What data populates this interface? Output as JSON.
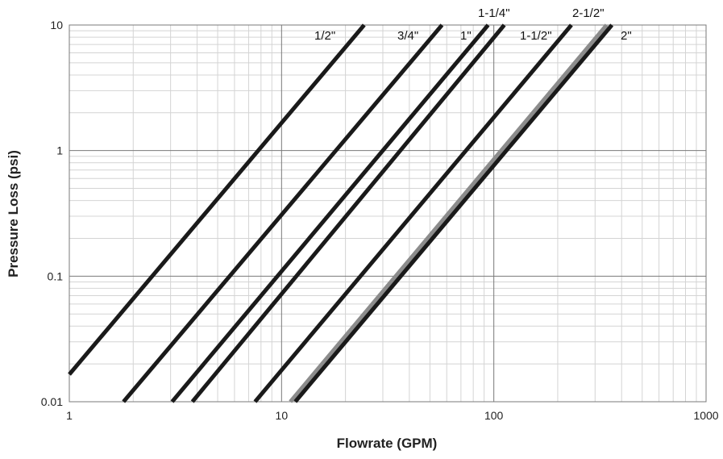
{
  "chart_data": {
    "type": "line",
    "xlabel": "Flowrate (GPM)",
    "ylabel": "Pressure Loss (psi)",
    "xscale": "log",
    "yscale": "log",
    "xlim": [
      1,
      1000
    ],
    "ylim": [
      0.01,
      10
    ],
    "x_ticks": [
      "1",
      "10",
      "100",
      "1000"
    ],
    "y_ticks": [
      "0.01",
      "0.1",
      "1",
      "10"
    ],
    "grid": true,
    "legend": "none (series labeled at top of lines)",
    "colors": {
      "line": "#1a1a1a",
      "gray_line": "#8c8c8c",
      "major_grid": "#7a7a7a",
      "minor_grid": "#d4d4d4"
    },
    "series": [
      {
        "name": "1/2\"",
        "color": "#1a1a1a",
        "x": [
          1,
          24.5
        ],
        "y": [
          0.0165,
          10
        ]
      },
      {
        "name": "3/4\"",
        "color": "#1a1a1a",
        "x": [
          1.8,
          57
        ],
        "y": [
          0.01,
          10
        ]
      },
      {
        "name": "1\"",
        "color": "#1a1a1a",
        "x": [
          3.05,
          94
        ],
        "y": [
          0.01,
          10
        ]
      },
      {
        "name": "1-1/4\"",
        "color": "#1a1a1a",
        "x": [
          3.8,
          112
        ],
        "y": [
          0.01,
          10
        ]
      },
      {
        "name": "1-1/2\"",
        "color": "#1a1a1a",
        "x": [
          7.5,
          232
        ],
        "y": [
          0.01,
          10
        ]
      },
      {
        "name": "2-1/2\"",
        "color": "#8c8c8c",
        "x": [
          11,
          340
        ],
        "y": [
          0.01,
          10
        ]
      },
      {
        "name": "2\"",
        "color": "#1a1a1a",
        "x": [
          11.6,
          360
        ],
        "y": [
          0.01,
          10
        ]
      }
    ]
  }
}
